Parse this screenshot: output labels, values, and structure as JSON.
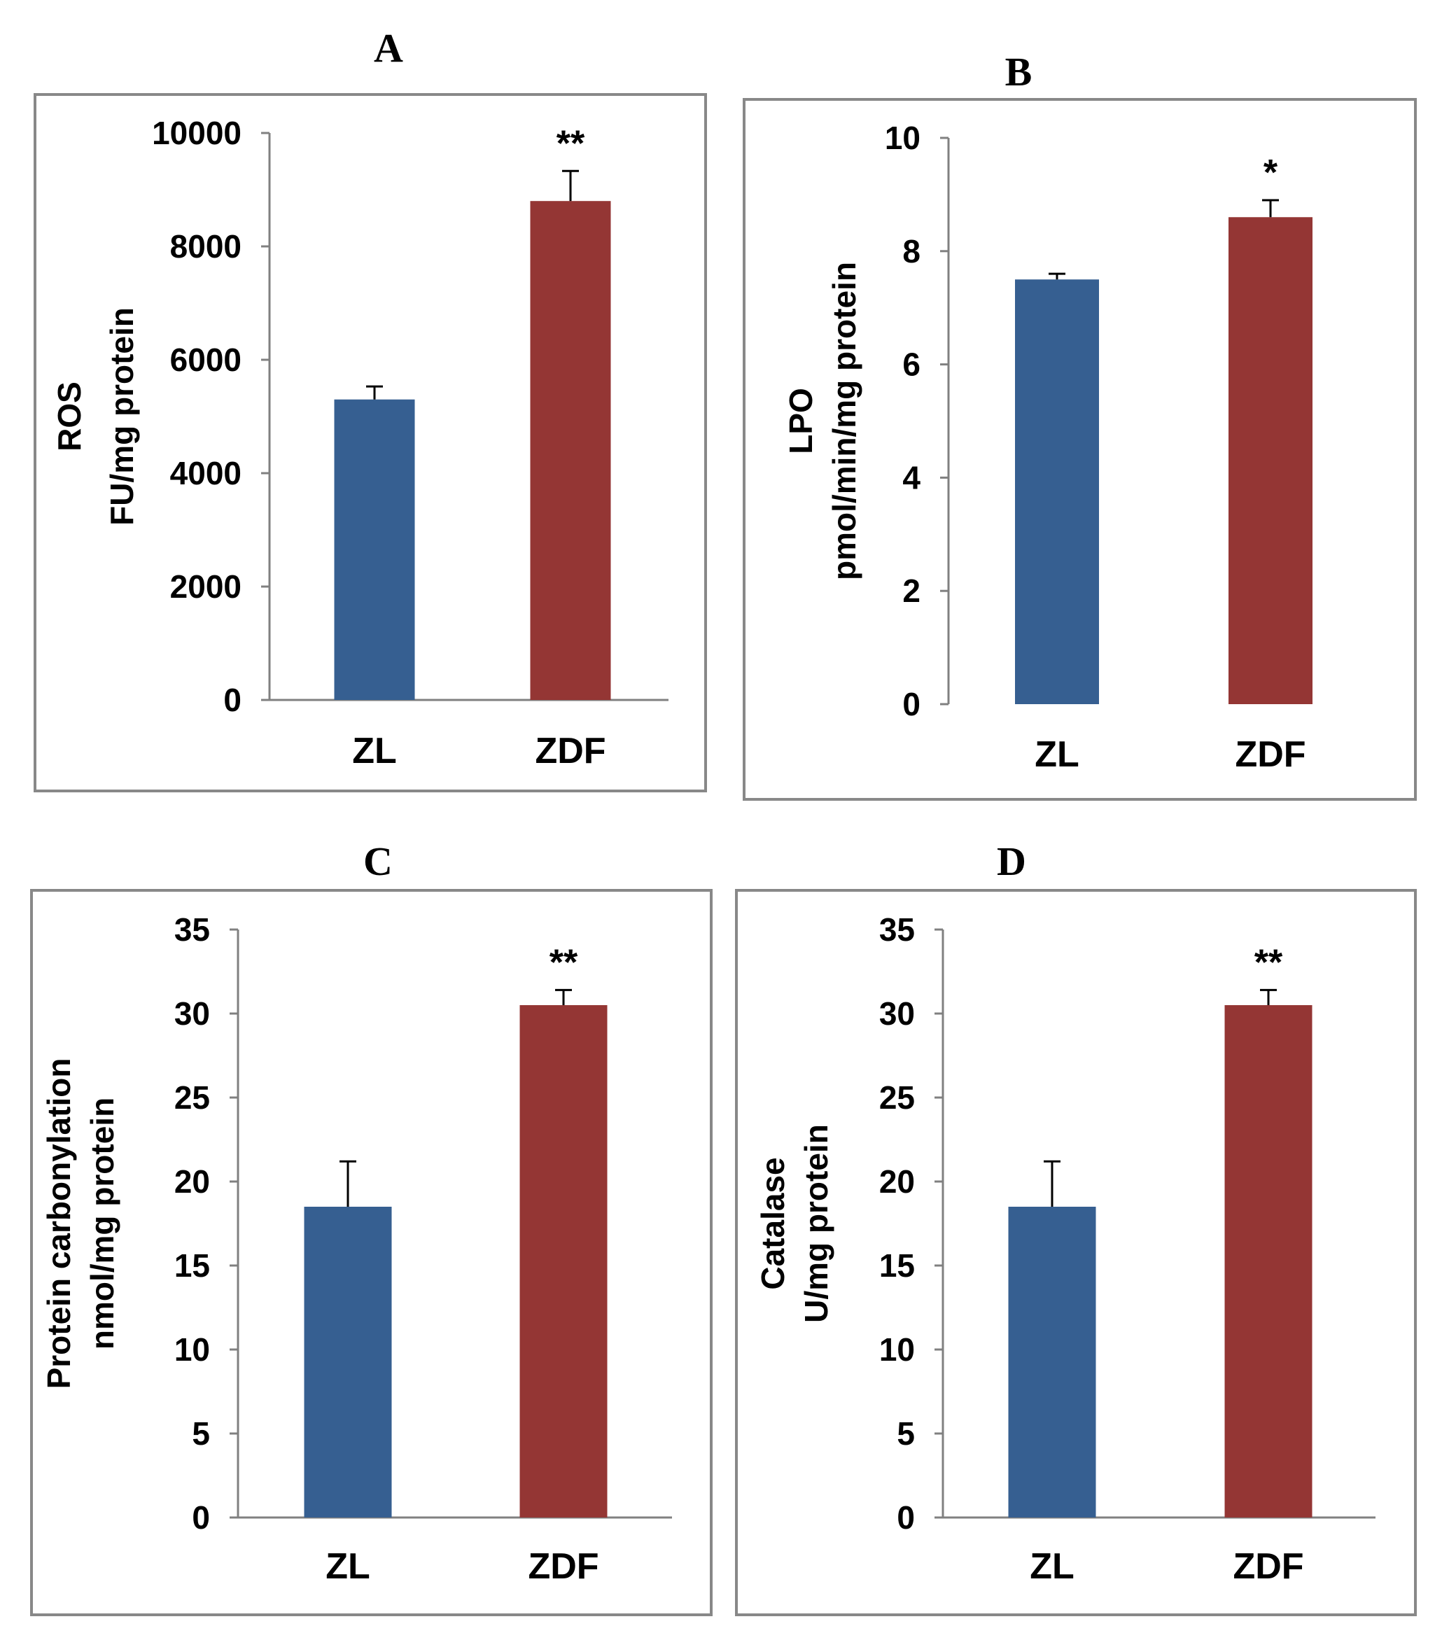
{
  "figure": {
    "panel_border_color": "#888888",
    "axis_color": "#808080",
    "text_color": "#000000"
  },
  "chart_data": [
    {
      "type": "bar",
      "panel": "A",
      "title": "A",
      "ylabel_lines": [
        "ROS",
        "FU/mg protein"
      ],
      "categories": [
        "ZL",
        "ZDF"
      ],
      "values": [
        5300,
        8800
      ],
      "errors": [
        230,
        530
      ],
      "colors": [
        "#365F91",
        "#943634"
      ],
      "significance": [
        "",
        "**"
      ],
      "ylim": [
        0,
        10000
      ],
      "yticks": [
        0,
        2000,
        4000,
        6000,
        8000,
        10000
      ],
      "grid": false,
      "legend": "none"
    },
    {
      "type": "bar",
      "panel": "B",
      "title": "B",
      "ylabel_lines": [
        "LPO",
        "pmol/min/mg protein"
      ],
      "categories": [
        "ZL",
        "ZDF"
      ],
      "values": [
        7.5,
        8.6
      ],
      "errors": [
        0.1,
        0.3
      ],
      "colors": [
        "#365F91",
        "#943634"
      ],
      "significance": [
        "",
        "*"
      ],
      "ylim": [
        0,
        10
      ],
      "yticks": [
        0,
        2,
        4,
        6,
        8,
        10
      ],
      "grid": false,
      "legend": "none"
    },
    {
      "type": "bar",
      "panel": "C",
      "title": "C",
      "ylabel_lines": [
        "Protein carbonylation",
        "nmol/mg protein"
      ],
      "categories": [
        "ZL",
        "ZDF"
      ],
      "values": [
        18.5,
        30.5
      ],
      "errors": [
        2.7,
        0.9
      ],
      "colors": [
        "#365F91",
        "#943634"
      ],
      "significance": [
        "",
        "**"
      ],
      "ylim": [
        0,
        35
      ],
      "yticks": [
        0,
        5,
        10,
        15,
        20,
        25,
        30,
        35
      ],
      "grid": false,
      "legend": "none"
    },
    {
      "type": "bar",
      "panel": "D",
      "title": "D",
      "ylabel_lines": [
        "Catalase",
        "U/mg protein"
      ],
      "categories": [
        "ZL",
        "ZDF"
      ],
      "values": [
        18.5,
        30.5
      ],
      "errors": [
        2.7,
        0.9
      ],
      "colors": [
        "#365F91",
        "#943634"
      ],
      "significance": [
        "",
        "**"
      ],
      "ylim": [
        0,
        35
      ],
      "yticks": [
        0,
        5,
        10,
        15,
        20,
        25,
        30,
        35
      ],
      "grid": false,
      "legend": "none"
    }
  ]
}
